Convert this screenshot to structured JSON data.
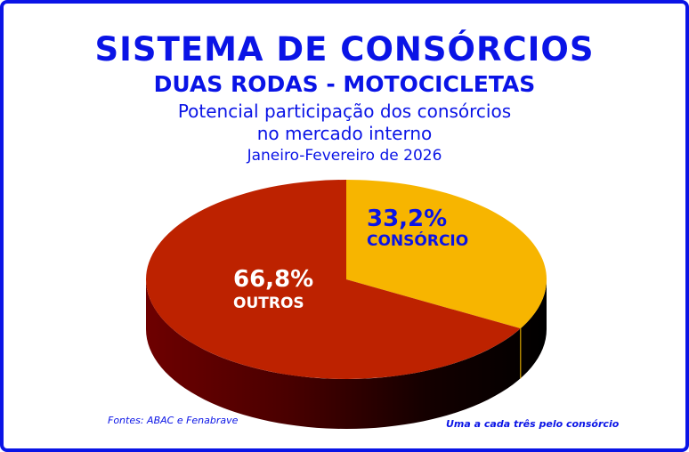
{
  "header": {
    "title": "SISTEMA DE CONSÓRCIOS",
    "subtitle": "DUAS RODAS - MOTOCICLETAS",
    "description_line1": "Potencial participação dos consórcios",
    "description_line2": "no mercado interno",
    "period": "Janeiro-Fevereiro de 2026"
  },
  "footer": {
    "source": "Fontes: ABAC e Fenabrave",
    "note": "Uma a cada três pelo consórcio"
  },
  "colors": {
    "frame": "#0a14e6",
    "text": "#0a14e6",
    "consorcio": "#f7b500",
    "outros": "#bd2200"
  },
  "chart_data": {
    "type": "pie",
    "slices": [
      {
        "label": "CONSÓRCIO",
        "value": 33.2,
        "value_label": "33,2%",
        "color": "#f7b500"
      },
      {
        "label": "OUTROS",
        "value": 66.8,
        "value_label": "66,8%",
        "color": "#bd2200"
      }
    ]
  }
}
